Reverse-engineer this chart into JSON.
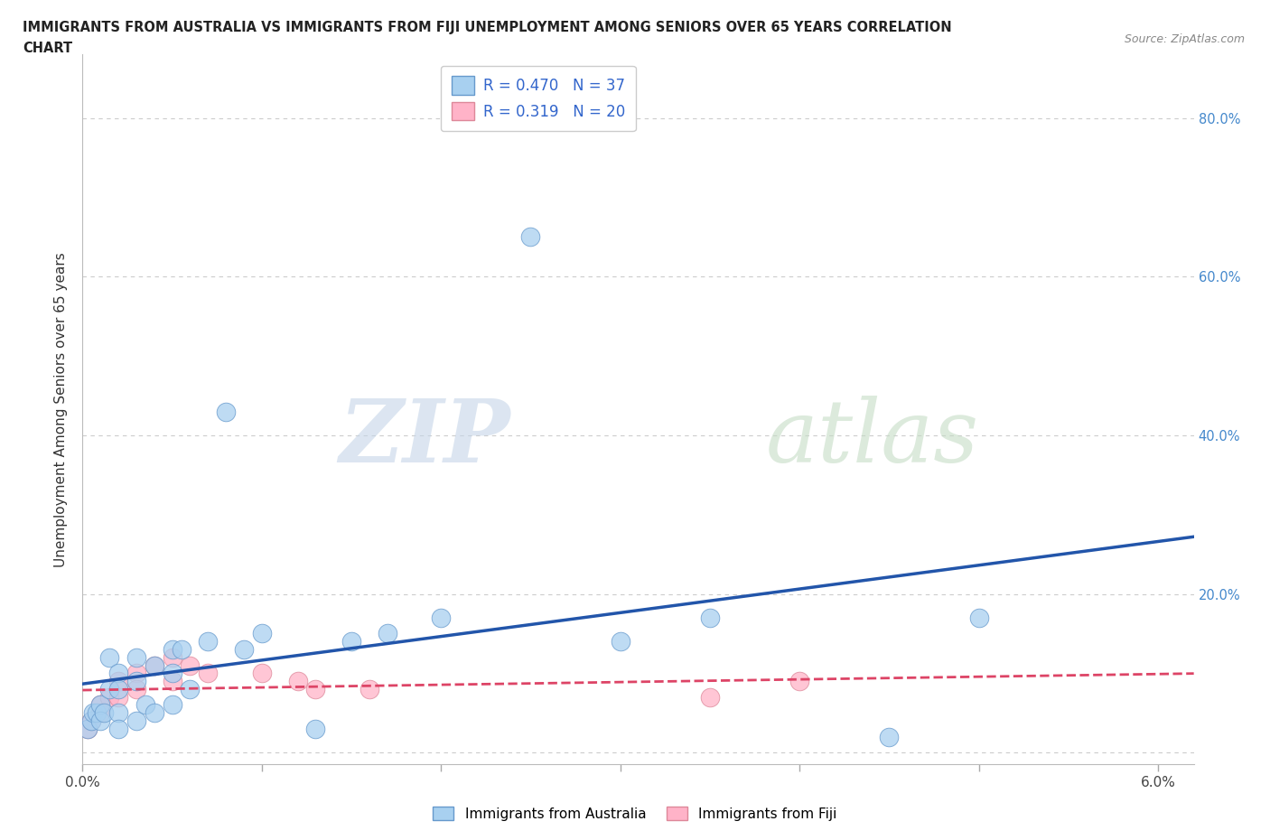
{
  "title_line1": "IMMIGRANTS FROM AUSTRALIA VS IMMIGRANTS FROM FIJI UNEMPLOYMENT AMONG SENIORS OVER 65 YEARS CORRELATION",
  "title_line2": "CHART",
  "source": "Source: ZipAtlas.com",
  "ylabel": "Unemployment Among Seniors over 65 years",
  "xlim": [
    0.0,
    0.062
  ],
  "ylim": [
    -0.015,
    0.88
  ],
  "yticks": [
    0.0,
    0.2,
    0.4,
    0.6,
    0.8
  ],
  "xtick_positions": [
    0.0,
    0.01,
    0.02,
    0.03,
    0.04,
    0.05,
    0.06
  ],
  "australia_color": "#a8d0f0",
  "australia_edge": "#6699cc",
  "fiji_color": "#ffb3c8",
  "fiji_edge": "#dd8899",
  "line_australia_color": "#2255aa",
  "line_fiji_color": "#dd4466",
  "australia_R": "0.470",
  "australia_N": "37",
  "fiji_R": "0.319",
  "fiji_N": "20",
  "legend_color": "#3366cc",
  "right_tick_color": "#4488cc",
  "aus_x": [
    0.0003,
    0.0005,
    0.0006,
    0.0008,
    0.001,
    0.001,
    0.0012,
    0.0015,
    0.0015,
    0.002,
    0.002,
    0.002,
    0.002,
    0.003,
    0.003,
    0.003,
    0.0035,
    0.004,
    0.004,
    0.005,
    0.005,
    0.005,
    0.0055,
    0.006,
    0.007,
    0.008,
    0.009,
    0.01,
    0.013,
    0.015,
    0.017,
    0.02,
    0.025,
    0.03,
    0.035,
    0.045,
    0.05
  ],
  "aus_y": [
    0.03,
    0.04,
    0.05,
    0.05,
    0.06,
    0.04,
    0.05,
    0.12,
    0.08,
    0.1,
    0.08,
    0.05,
    0.03,
    0.12,
    0.09,
    0.04,
    0.06,
    0.11,
    0.05,
    0.13,
    0.1,
    0.06,
    0.13,
    0.08,
    0.14,
    0.43,
    0.13,
    0.15,
    0.03,
    0.14,
    0.15,
    0.17,
    0.65,
    0.14,
    0.17,
    0.02,
    0.17
  ],
  "fiji_x": [
    0.0003,
    0.0005,
    0.001,
    0.001,
    0.0015,
    0.002,
    0.002,
    0.003,
    0.003,
    0.004,
    0.005,
    0.005,
    0.006,
    0.007,
    0.01,
    0.012,
    0.013,
    0.016,
    0.035,
    0.04
  ],
  "fiji_y": [
    0.03,
    0.04,
    0.06,
    0.05,
    0.07,
    0.09,
    0.07,
    0.1,
    0.08,
    0.11,
    0.12,
    0.09,
    0.11,
    0.1,
    0.1,
    0.09,
    0.08,
    0.08,
    0.07,
    0.09
  ]
}
